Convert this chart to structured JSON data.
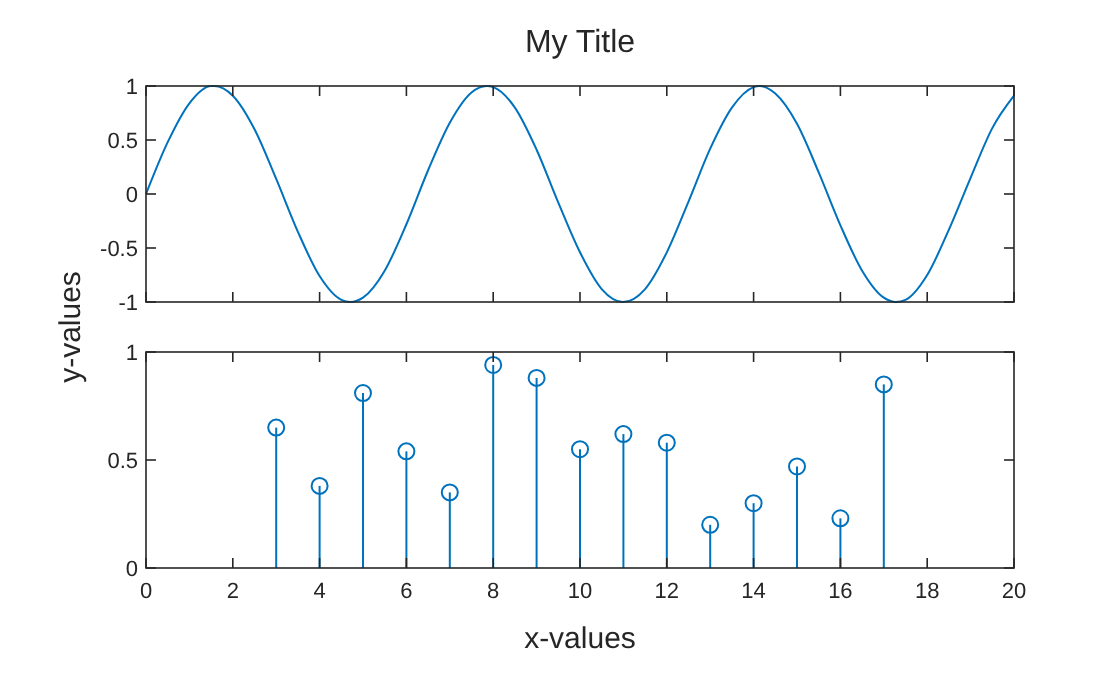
{
  "chart_data": [
    {
      "type": "line",
      "title": "My Title",
      "x": [
        0,
        0.5,
        1,
        1.5,
        1.57,
        2,
        2.5,
        3,
        3.5,
        4,
        4.5,
        4.71,
        5,
        5.5,
        6,
        6.5,
        7,
        7.5,
        7.85,
        8,
        8.5,
        9,
        9.5,
        10,
        10.5,
        10.99,
        11.5,
        12,
        12.5,
        13,
        13.5,
        14,
        14.14,
        14.5,
        15,
        15.5,
        16,
        16.5,
        17,
        17.28,
        17.5,
        18,
        18.5,
        19,
        19.5,
        20
      ],
      "series": [
        {
          "color": "#0072bd",
          "values": [
            0,
            0.48,
            0.84,
            1.0,
            1,
            0.91,
            0.6,
            0.14,
            -0.35,
            -0.76,
            -0.98,
            -1,
            -0.96,
            -0.71,
            -0.28,
            0.22,
            0.66,
            0.94,
            1,
            0.99,
            0.8,
            0.41,
            -0.08,
            -0.54,
            -0.88,
            -1,
            -0.88,
            -0.54,
            -0.07,
            0.42,
            0.8,
            0.99,
            1,
            0.93,
            0.65,
            0.2,
            -0.29,
            -0.71,
            -0.96,
            -1,
            -0.98,
            -0.75,
            -0.33,
            0.15,
            0.61,
            0.91
          ]
        }
      ],
      "xlim": [
        0,
        20
      ],
      "xticks": [
        0,
        2,
        4,
        6,
        8,
        10,
        12,
        14,
        16,
        18,
        20
      ],
      "ylim": [
        -1,
        1
      ],
      "yticks": [
        -1,
        -0.5,
        0,
        0.5,
        1
      ],
      "tick_labels": "y",
      "grid": false,
      "line_style": "solid",
      "marker": "none"
    },
    {
      "type": "lollipop",
      "xlabel": "x-values",
      "ylabel": "y-values",
      "x": [
        3,
        4,
        5,
        6,
        7,
        8,
        9,
        10,
        11,
        12,
        13,
        14,
        15,
        16,
        17
      ],
      "series": [
        {
          "color": "#0072bd",
          "values": [
            0.65,
            0.38,
            0.81,
            0.54,
            0.35,
            0.94,
            0.88,
            0.55,
            0.62,
            0.58,
            0.2,
            0.3,
            0.47,
            0.23,
            0.85
          ]
        }
      ],
      "xlim": [
        0,
        20
      ],
      "xticks": [
        0,
        2,
        4,
        6,
        8,
        10,
        12,
        14,
        16,
        18,
        20
      ],
      "ylim": [
        0,
        1
      ],
      "yticks": [
        0,
        0.5,
        1
      ],
      "grid": false,
      "marker": "circle"
    }
  ]
}
